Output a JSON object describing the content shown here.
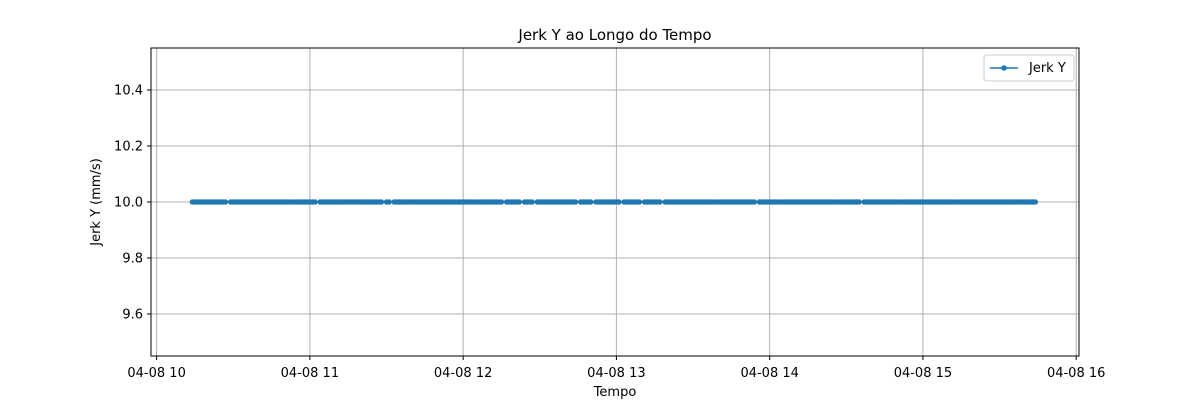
{
  "chart_data": {
    "type": "line",
    "title": "Jerk Y ao Longo do Tempo",
    "xlabel": "Tempo",
    "ylabel": "Jerk Y (mm/s)",
    "date": "04-08",
    "xlim": [
      "04-08 10:00",
      "04-08 16:00"
    ],
    "x_ticks": [
      "04-08 10",
      "04-08 11",
      "04-08 12",
      "04-08 13",
      "04-08 14",
      "04-08 15",
      "04-08 16"
    ],
    "ylim": [
      9.45,
      10.55
    ],
    "y_ticks": [
      "9.6",
      "9.8",
      "10.0",
      "10.2",
      "10.4"
    ],
    "grid": true,
    "legend_position": "top-right",
    "colors": {
      "series": "#1f77b4",
      "grid": "#b0b0b0",
      "axes": "#000000"
    },
    "series": [
      {
        "name": "Jerk Y",
        "y": 10.0,
        "segments": [
          [
            "10:14",
            "10:27"
          ],
          [
            "10:29",
            "11:02"
          ],
          [
            "11:04",
            "11:28"
          ],
          [
            "11:30",
            "11:31"
          ],
          [
            "11:33",
            "12:15"
          ],
          [
            "12:17",
            "12:22"
          ],
          [
            "12:24",
            "12:27"
          ],
          [
            "12:29",
            "12:44"
          ],
          [
            "12:46",
            "12:50"
          ],
          [
            "12:52",
            "13:01"
          ],
          [
            "13:03",
            "13:09"
          ],
          [
            "13:11",
            "13:17"
          ],
          [
            "13:19",
            "13:54"
          ],
          [
            "13:56",
            "14:35"
          ],
          [
            "14:37",
            "15:44"
          ]
        ]
      }
    ]
  }
}
